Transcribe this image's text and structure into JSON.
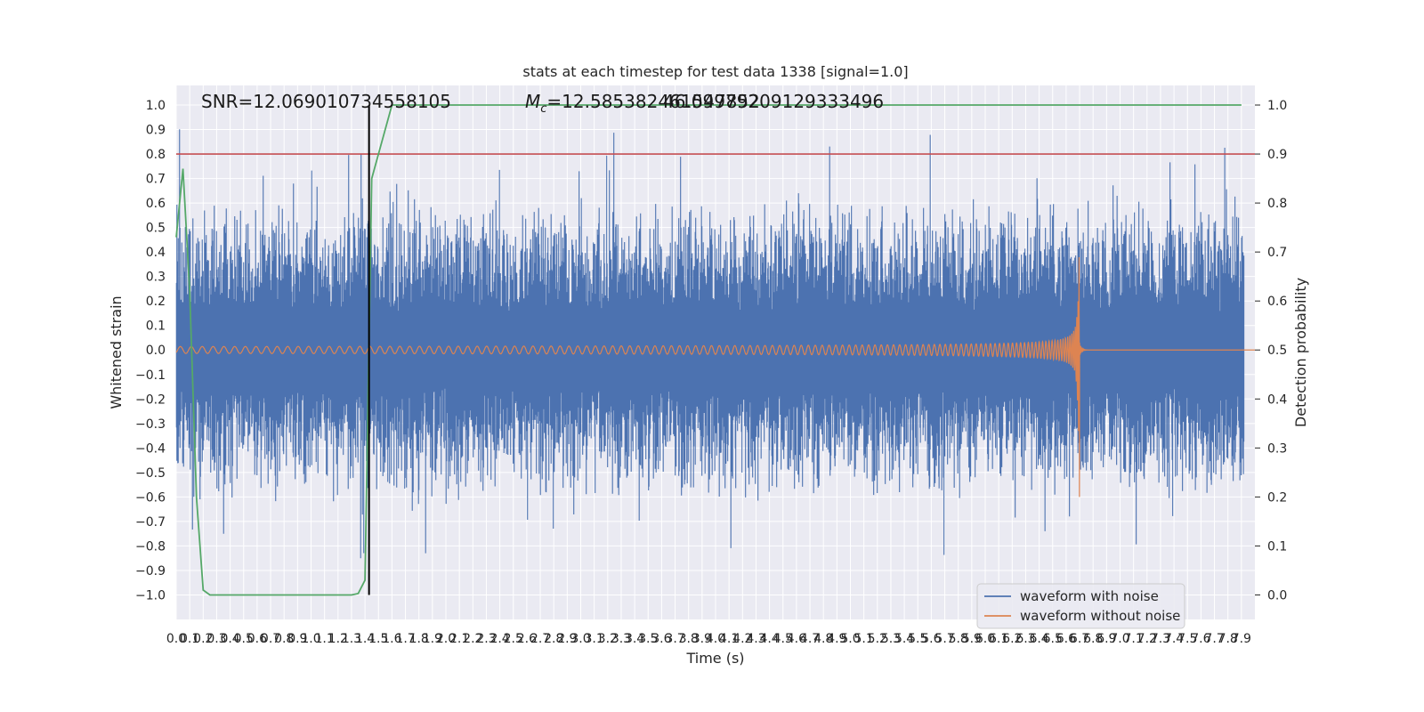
{
  "chart_data": {
    "type": "line",
    "title": "stats at each timestep for test data 1338 [signal=1.0]",
    "xlabel": "Time (s)",
    "ylabel_left": "Whitened strain",
    "ylabel_right": "Detection probability",
    "xlim": [
      0.0,
      8.0
    ],
    "ylim_left": [
      -1.1,
      1.08
    ],
    "ylim_right": [
      -0.05,
      1.04
    ],
    "x_ticks": [
      "0.0",
      "0.1",
      "0.2",
      "0.3",
      "0.4",
      "0.5",
      "0.6",
      "0.7",
      "0.8",
      "0.9",
      "1.0",
      "1.1",
      "1.2",
      "1.3",
      "1.4",
      "1.5",
      "1.6",
      "1.7",
      "1.8",
      "1.9",
      "2.0",
      "2.1",
      "2.2",
      "2.3",
      "2.4",
      "2.5",
      "2.6",
      "2.7",
      "2.8",
      "2.9",
      "3.0",
      "3.1",
      "3.2",
      "3.3",
      "3.4",
      "3.5",
      "3.6",
      "3.7",
      "3.8",
      "3.9",
      "4.0",
      "4.1",
      "4.2",
      "4.3",
      "4.4",
      "4.5",
      "4.6",
      "4.7",
      "4.8",
      "4.9",
      "5.0",
      "5.1",
      "5.2",
      "5.3",
      "5.4",
      "5.5",
      "5.6",
      "5.7",
      "5.8",
      "5.9",
      "6.0",
      "6.1",
      "6.2",
      "6.3",
      "6.4",
      "6.5",
      "6.6",
      "6.7",
      "6.8",
      "6.9",
      "7.0",
      "7.1",
      "7.2",
      "7.3",
      "7.4",
      "7.5",
      "7.6",
      "7.7",
      "7.8",
      "7.9"
    ],
    "y_ticks_left": [
      "−1.0",
      "−0.9",
      "−0.8",
      "−0.7",
      "−0.6",
      "−0.5",
      "−0.4",
      "−0.3",
      "−0.2",
      "−0.1",
      "0.0",
      "0.1",
      "0.2",
      "0.3",
      "0.4",
      "0.5",
      "0.6",
      "0.7",
      "0.8",
      "0.9",
      "1.0"
    ],
    "y_ticks_right": [
      "0.0",
      "0.1",
      "0.2",
      "0.3",
      "0.4",
      "0.5",
      "0.6",
      "0.7",
      "0.8",
      "0.9",
      "1.0"
    ],
    "threshold": 0.9,
    "merger_time": 6.7,
    "detection_time": 1.43,
    "series": [
      {
        "name": "waveform with noise",
        "color": "#4c72b0",
        "axis": "left",
        "style": "noise",
        "amplitude_typical": 0.45,
        "amplitude_peak": 1.0
      },
      {
        "name": "waveform without noise",
        "color": "#dd8452",
        "axis": "left",
        "style": "chirp",
        "t_merger": 6.7,
        "peak_high": 0.4,
        "peak_low": -0.6
      },
      {
        "name": "detection probability",
        "color": "#55a868",
        "axis": "right",
        "x": [
          0.0,
          0.05,
          0.1,
          0.15,
          0.2,
          0.25,
          0.3,
          0.4,
          0.6,
          0.8,
          1.0,
          1.2,
          1.3,
          1.35,
          1.4,
          1.45,
          1.5,
          1.6,
          2.0,
          3.0,
          4.0,
          5.0,
          6.0,
          7.0,
          7.9
        ],
        "y": [
          0.73,
          0.87,
          0.62,
          0.2,
          0.01,
          0.0,
          0.0,
          0.0,
          0.0,
          0.0,
          0.0,
          0.0,
          0.0,
          0.003,
          0.03,
          0.85,
          0.9,
          1.0,
          1.0,
          1.0,
          1.0,
          1.0,
          1.0,
          1.0,
          1.0
        ]
      }
    ],
    "annotations": {
      "snr": "SNR=12.069010734558105",
      "mc_symbol": "M",
      "mc_sub": "c",
      "mc_value": "=12.585382461547852",
      "mc_overlap": "46.09979209129333496"
    },
    "legend_position": "lower right",
    "grid": true
  }
}
